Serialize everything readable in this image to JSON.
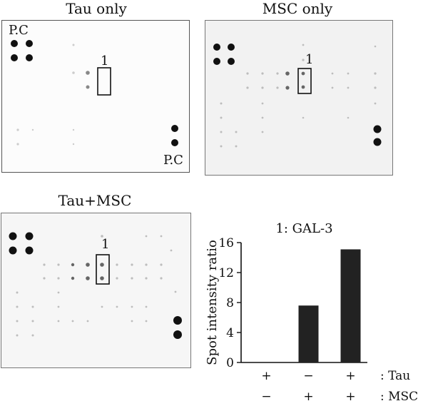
{
  "panels": {
    "tau_only": {
      "title": "Tau only",
      "pc_top": "P.C",
      "pc_bottom": "P.C",
      "spot_label": "1"
    },
    "msc_only": {
      "title": "MSC only",
      "spot_label": "1"
    },
    "tau_msc": {
      "title": "Tau+MSC",
      "spot_label": "1"
    }
  },
  "chart_data": {
    "type": "bar",
    "title": "1: GAL-3",
    "ylabel": "Spot intensity ratio",
    "ylim": [
      0,
      16
    ],
    "yticks": [
      "0",
      "4",
      "8",
      "12",
      "16"
    ],
    "categories": [
      "Tau only",
      "MSC only",
      "Tau+MSC"
    ],
    "values": [
      0,
      7.6,
      15.1
    ],
    "bar_color": "#222222",
    "conditions": [
      {
        "name": ": Tau",
        "signs": [
          "+",
          "−",
          "+"
        ]
      },
      {
        "name": ": MSC",
        "signs": [
          "−",
          "+",
          "+"
        ]
      }
    ]
  }
}
